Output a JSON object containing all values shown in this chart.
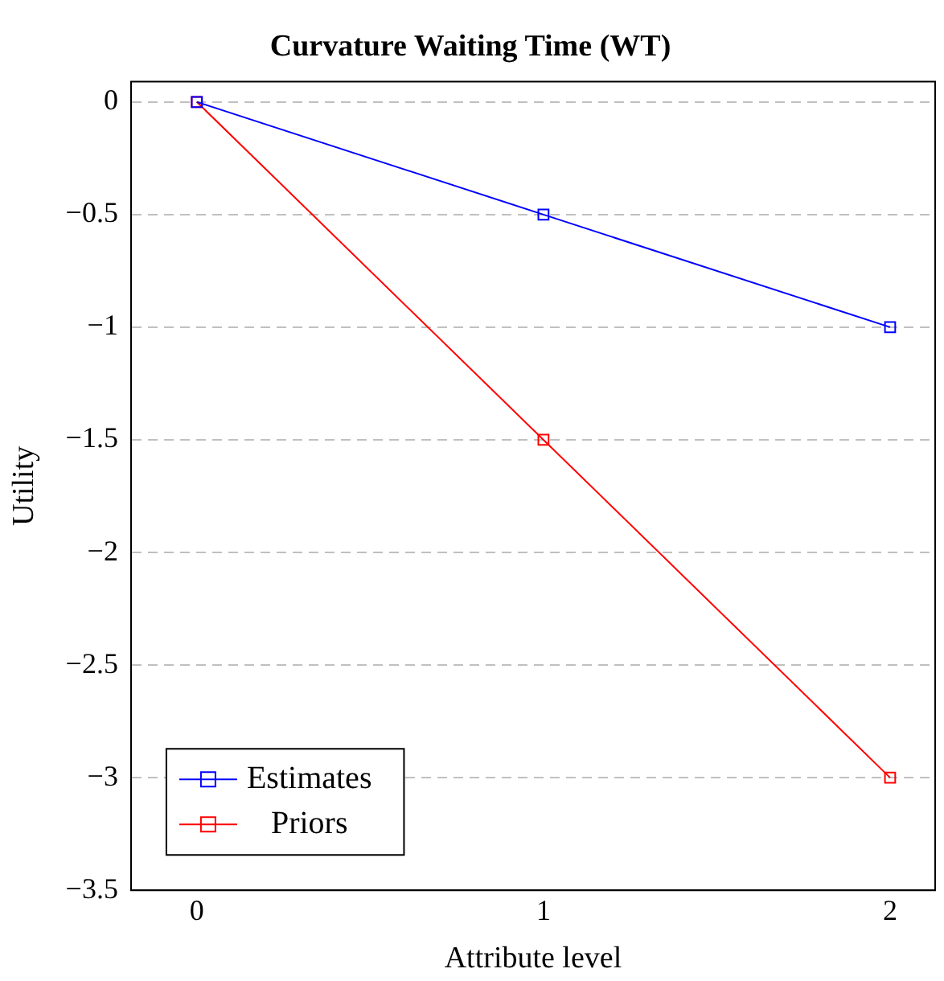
{
  "chart_data": {
    "type": "line",
    "title": "Curvature Waiting Time (WT)",
    "xlabel": "Attribute level",
    "ylabel": "Utility",
    "x": [
      0,
      1,
      2
    ],
    "series": [
      {
        "name": "Estimates",
        "color": "#0000ff",
        "values": [
          0,
          -0.5,
          -1
        ]
      },
      {
        "name": "Priors",
        "color": "#ff0000",
        "values": [
          0,
          -1.5,
          -3
        ]
      }
    ],
    "xlim": [
      -0.19,
      2.13
    ],
    "xticks": [
      0,
      1,
      2
    ],
    "ylim": [
      -3.5,
      0.09
    ],
    "yticks": [
      {
        "value": -3.5,
        "label": "−3.5"
      },
      {
        "value": -3,
        "label": "−3"
      },
      {
        "value": -2.5,
        "label": "−2.5"
      },
      {
        "value": -2,
        "label": "−2"
      },
      {
        "value": -1.5,
        "label": "−1.5"
      },
      {
        "value": -1,
        "label": "−1"
      },
      {
        "value": -0.5,
        "label": "−0.5"
      },
      0
    ],
    "grid": "y",
    "legend": "bottom left",
    "marker": "square",
    "line_style": "solid"
  }
}
